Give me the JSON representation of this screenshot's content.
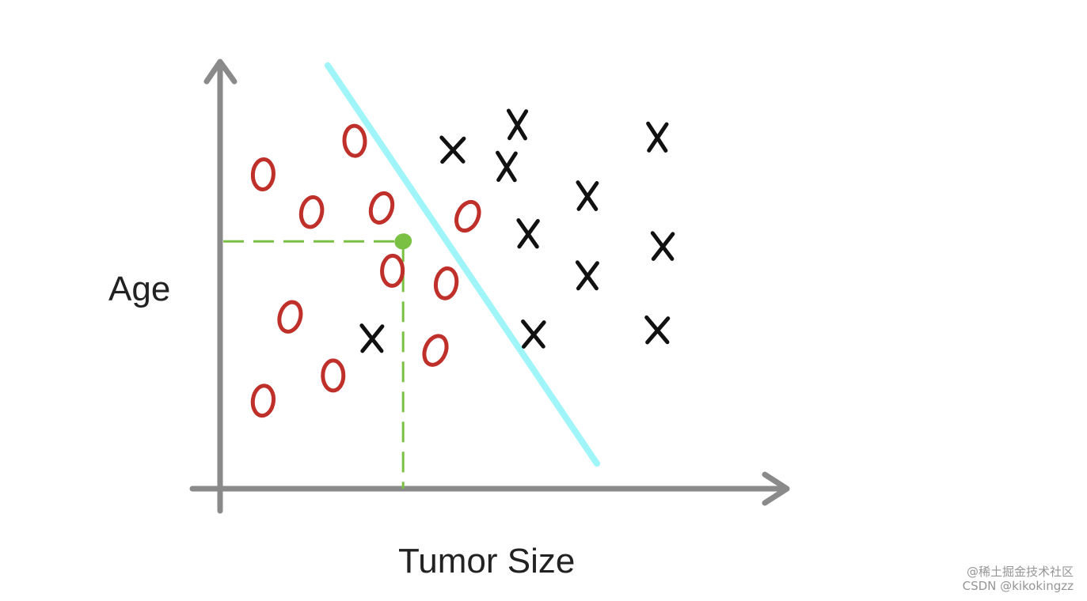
{
  "chart_data": {
    "type": "scatter",
    "xlabel": "Tumor Size",
    "ylabel": "Age",
    "xlim": [
      0,
      1
    ],
    "ylim": [
      0,
      1
    ],
    "grid": false,
    "series": [
      {
        "marker": "O",
        "color": "#c0302a",
        "points": [
          {
            "x": 0.25,
            "y": 0.83
          },
          {
            "x": 0.08,
            "y": 0.75
          },
          {
            "x": 0.17,
            "y": 0.66
          },
          {
            "x": 0.3,
            "y": 0.67
          },
          {
            "x": 0.46,
            "y": 0.65
          },
          {
            "x": 0.32,
            "y": 0.52
          },
          {
            "x": 0.42,
            "y": 0.49
          },
          {
            "x": 0.13,
            "y": 0.41
          },
          {
            "x": 0.4,
            "y": 0.33
          },
          {
            "x": 0.21,
            "y": 0.27
          },
          {
            "x": 0.08,
            "y": 0.21
          }
        ]
      },
      {
        "marker": "X",
        "color": "#111111",
        "points": [
          {
            "x": 0.43,
            "y": 0.81
          },
          {
            "x": 0.55,
            "y": 0.87
          },
          {
            "x": 0.53,
            "y": 0.77
          },
          {
            "x": 0.81,
            "y": 0.84
          },
          {
            "x": 0.68,
            "y": 0.7
          },
          {
            "x": 0.57,
            "y": 0.61
          },
          {
            "x": 0.68,
            "y": 0.51
          },
          {
            "x": 0.82,
            "y": 0.58
          },
          {
            "x": 0.28,
            "y": 0.36
          },
          {
            "x": 0.58,
            "y": 0.37
          },
          {
            "x": 0.81,
            "y": 0.38
          }
        ]
      }
    ],
    "decision_boundary": {
      "color": "#9ff5f8",
      "from": {
        "x": 0.2,
        "y": 1.01
      },
      "to": {
        "x": 0.7,
        "y": 0.06
      }
    },
    "query_point": {
      "x": 0.34,
      "y": 0.59,
      "color": "#7ac143"
    }
  },
  "watermark": {
    "line1": "@稀土掘金技术社区",
    "line2": "CSDN @kikokingzz"
  }
}
